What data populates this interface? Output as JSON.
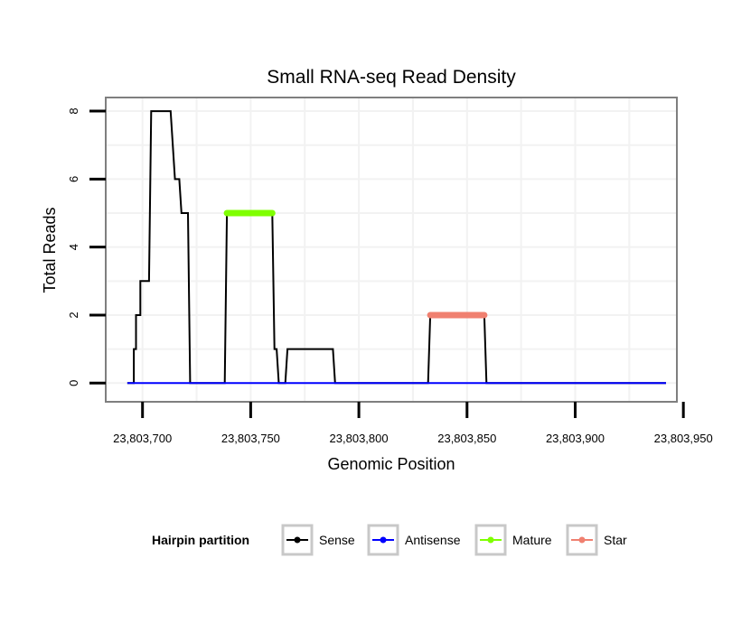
{
  "chart_data": {
    "type": "line",
    "title": "Small RNA-seq Read Density",
    "xlabel": "Genomic Position",
    "ylabel": "Total Reads",
    "xlim": [
      23803683,
      23803947
    ],
    "ylim": [
      -0.55,
      8.4
    ],
    "x_ticks": [
      23803700,
      23803750,
      23803800,
      23803850,
      23803900,
      23803950
    ],
    "x_tick_labels": [
      "23,803,700",
      "23,803,750",
      "23,803,800",
      "23,803,850",
      "23,803,900",
      "23,803,950"
    ],
    "y_ticks": [
      0,
      2,
      4,
      6,
      8
    ],
    "y_tick_labels": [
      "0",
      "2",
      "4",
      "6",
      "8"
    ],
    "grid": true,
    "legend_position": "bottom",
    "legend_title": "Hairpin partition",
    "colors": {
      "panel_border": "#7f7f7f",
      "grid": "#f2f2f2",
      "legend_key_border": "#c8c8c8"
    },
    "series": [
      {
        "name": "Sense",
        "color": "#000000",
        "points": [
          [
            23803693,
            0
          ],
          [
            23803696,
            0
          ],
          [
            23803696,
            1
          ],
          [
            23803697,
            1
          ],
          [
            23803697,
            2
          ],
          [
            23803699,
            2
          ],
          [
            23803699,
            3
          ],
          [
            23803703,
            3
          ],
          [
            23803704,
            8
          ],
          [
            23803713,
            8
          ],
          [
            23803715,
            6
          ],
          [
            23803717,
            6
          ],
          [
            23803718,
            5
          ],
          [
            23803721,
            5
          ],
          [
            23803722,
            0
          ],
          [
            23803738,
            0
          ],
          [
            23803739,
            5
          ],
          [
            23803760,
            5
          ],
          [
            23803761,
            1
          ],
          [
            23803762,
            1
          ],
          [
            23803763,
            0
          ],
          [
            23803766,
            0
          ],
          [
            23803767,
            1
          ],
          [
            23803788,
            1
          ],
          [
            23803789,
            0
          ],
          [
            23803832,
            0
          ],
          [
            23803833,
            2
          ],
          [
            23803858,
            2
          ],
          [
            23803859,
            0
          ],
          [
            23803942,
            0
          ]
        ]
      },
      {
        "name": "Antisense",
        "color": "#0000ff",
        "points": [
          [
            23803693,
            0
          ],
          [
            23803942,
            0
          ]
        ]
      },
      {
        "name": "Mature",
        "color": "#7fff00",
        "points": [
          [
            23803739,
            5
          ],
          [
            23803760,
            5
          ]
        ]
      },
      {
        "name": "Star",
        "color": "#f08070",
        "points": [
          [
            23803833,
            2
          ],
          [
            23803858,
            2
          ]
        ]
      }
    ]
  }
}
